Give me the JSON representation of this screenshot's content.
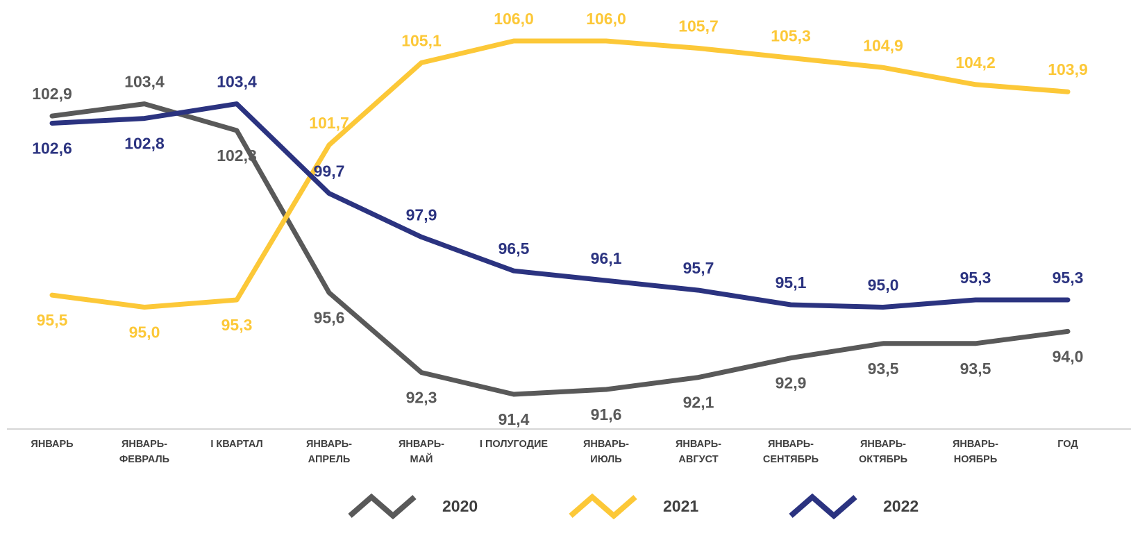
{
  "chart_data": {
    "type": "line",
    "title": "",
    "xlabel": "",
    "ylabel": "",
    "ylim": [
      90,
      106.5
    ],
    "grid": false,
    "legend_position": "bottom",
    "categories": [
      [
        "ЯНВАРЬ"
      ],
      [
        "ЯНВАРЬ-",
        "ФЕВРАЛЬ"
      ],
      [
        "I КВАРТАЛ"
      ],
      [
        "ЯНВАРЬ-",
        "АПРЕЛЬ"
      ],
      [
        "ЯНВАРЬ-",
        "МАЙ"
      ],
      [
        "I ПОЛУГОДИЕ"
      ],
      [
        "ЯНВАРЬ-",
        "ИЮЛЬ"
      ],
      [
        "ЯНВАРЬ-",
        "АВГУСТ"
      ],
      [
        "ЯНВАРЬ-",
        "СЕНТЯБРЬ"
      ],
      [
        "ЯНВАРЬ-",
        "ОКТЯБРЬ"
      ],
      [
        "ЯНВАРЬ-",
        "НОЯБРЬ"
      ],
      [
        "ГОД"
      ]
    ],
    "series": [
      {
        "name": "2020",
        "color": "#595959",
        "values": [
          102.9,
          103.4,
          102.3,
          95.6,
          92.3,
          91.4,
          91.6,
          92.1,
          92.9,
          93.5,
          93.5,
          94.0
        ],
        "labels": [
          "102,9",
          "103,4",
          "102,3",
          "95,6",
          "92,3",
          "91,4",
          "91,6",
          "92,1",
          "92,9",
          "93,5",
          "93,5",
          "94,0"
        ],
        "label_position": [
          "above",
          "above",
          "below",
          "below",
          "below",
          "below",
          "below",
          "below",
          "below",
          "below",
          "below",
          "below"
        ]
      },
      {
        "name": "2021",
        "color": "#fcc838",
        "values": [
          95.5,
          95.0,
          95.3,
          101.7,
          105.1,
          106.0,
          106.0,
          105.7,
          105.3,
          104.9,
          104.2,
          103.9
        ],
        "labels": [
          "95,5",
          "95,0",
          "95,3",
          "101,7",
          "105,1",
          "106,0",
          "106,0",
          "105,7",
          "105,3",
          "104,9",
          "104,2",
          "103,9"
        ],
        "label_position": [
          "below",
          "below",
          "below",
          "above",
          "above",
          "above",
          "above",
          "above",
          "above",
          "above",
          "above",
          "above"
        ]
      },
      {
        "name": "2022",
        "color": "#2b3380",
        "values": [
          102.6,
          102.8,
          103.4,
          99.7,
          97.9,
          96.5,
          96.1,
          95.7,
          95.1,
          95.0,
          95.3,
          95.3
        ],
        "labels": [
          "102,6",
          "102,8",
          "103,4",
          "99,7",
          "97,9",
          "96,5",
          "96,1",
          "95,7",
          "95,1",
          "95,0",
          "95,3",
          "95,3"
        ],
        "label_position": [
          "below",
          "below",
          "above",
          "above",
          "above",
          "above",
          "above",
          "above",
          "above",
          "above",
          "above",
          "above"
        ]
      }
    ]
  }
}
